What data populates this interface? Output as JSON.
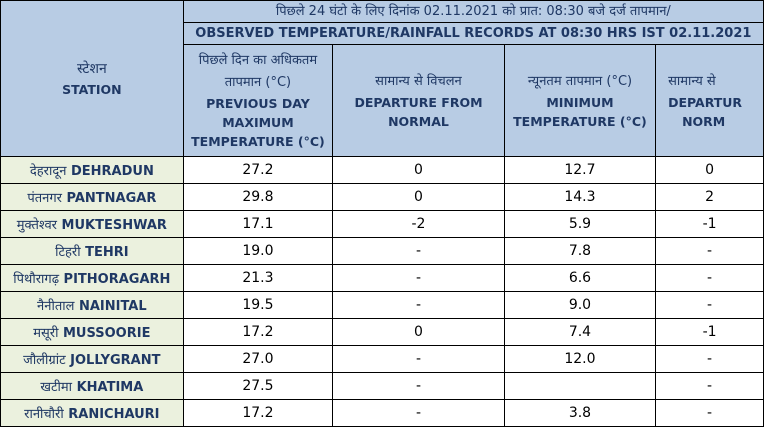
{
  "header": {
    "banner_hindi": "पिछले 24 घंटो के लिए दिनांक 02.11.2021 को प्रात: 08:30 बजे दर्ज तापमान/",
    "banner_english": "OBSERVED TEMPERATURE/RAINFALL RECORDS AT 08:30 HRS IST 02.11.2021",
    "station_hindi": "स्टेशन",
    "station_english": "STATION",
    "col_max_hindi_1": "पिछले दिन का अधिकतम",
    "col_max_hindi_2": "तापमान (°C)",
    "col_max_english_1": "PREVIOUS DAY",
    "col_max_english_2": "MAXIMUM",
    "col_max_english_3": "TEMPERATURE (°C)",
    "col_dep1_hindi": "सामान्य से विचलन",
    "col_dep1_english_1": "DEPARTURE FROM",
    "col_dep1_english_2": "NORMAL",
    "col_min_hindi": "न्यूनतम तापमान (°C)",
    "col_min_english_1": "MINIMUM",
    "col_min_english_2": "TEMPERATURE (°C)",
    "col_dep2_hindi": "सामान्य से",
    "col_dep2_english_1": "DEPARTUR",
    "col_dep2_english_2": "NORM"
  },
  "rows": [
    {
      "hindi": "देहरादून",
      "english": "DEHRADUN",
      "max": "27.2",
      "dep_max": "0",
      "min": "12.7",
      "dep_min": "0"
    },
    {
      "hindi": "पंतनगर",
      "english": "PANTNAGAR",
      "max": "29.8",
      "dep_max": "0",
      "min": "14.3",
      "dep_min": "2"
    },
    {
      "hindi": "मुक्तेश्वर",
      "english": "MUKTESHWAR",
      "max": "17.1",
      "dep_max": "-2",
      "min": "5.9",
      "dep_min": "-1"
    },
    {
      "hindi": "टिहरी",
      "english": "TEHRI",
      "max": "19.0",
      "dep_max": "-",
      "min": "7.8",
      "dep_min": "-"
    },
    {
      "hindi": "पिथौरागढ़",
      "english": "PITHORAGARH",
      "max": "21.3",
      "dep_max": "-",
      "min": "6.6",
      "dep_min": "-"
    },
    {
      "hindi": "नैनीताल",
      "english": "NAINITAL",
      "max": "19.5",
      "dep_max": "-",
      "min": "9.0",
      "dep_min": "-"
    },
    {
      "hindi": "मसूरी",
      "english": "MUSSOORIE",
      "max": "17.2",
      "dep_max": "0",
      "min": "7.4",
      "dep_min": "-1"
    },
    {
      "hindi": "जौलीग्रांट",
      "english": "JOLLYGRANT",
      "max": "27.0",
      "dep_max": "-",
      "min": "12.0",
      "dep_min": "-"
    },
    {
      "hindi": "खटीमा",
      "english": "KHATIMA",
      "max": "27.5",
      "dep_max": "-",
      "min": "",
      "dep_min": "-"
    },
    {
      "hindi": "रानीचौरी",
      "english": "RANICHAURI",
      "max": "17.2",
      "dep_max": "-",
      "min": "3.8",
      "dep_min": "-"
    }
  ],
  "colors": {
    "header_bg": "#b8cce4",
    "station_bg": "#ebf1de",
    "header_text": "#1f3864"
  }
}
